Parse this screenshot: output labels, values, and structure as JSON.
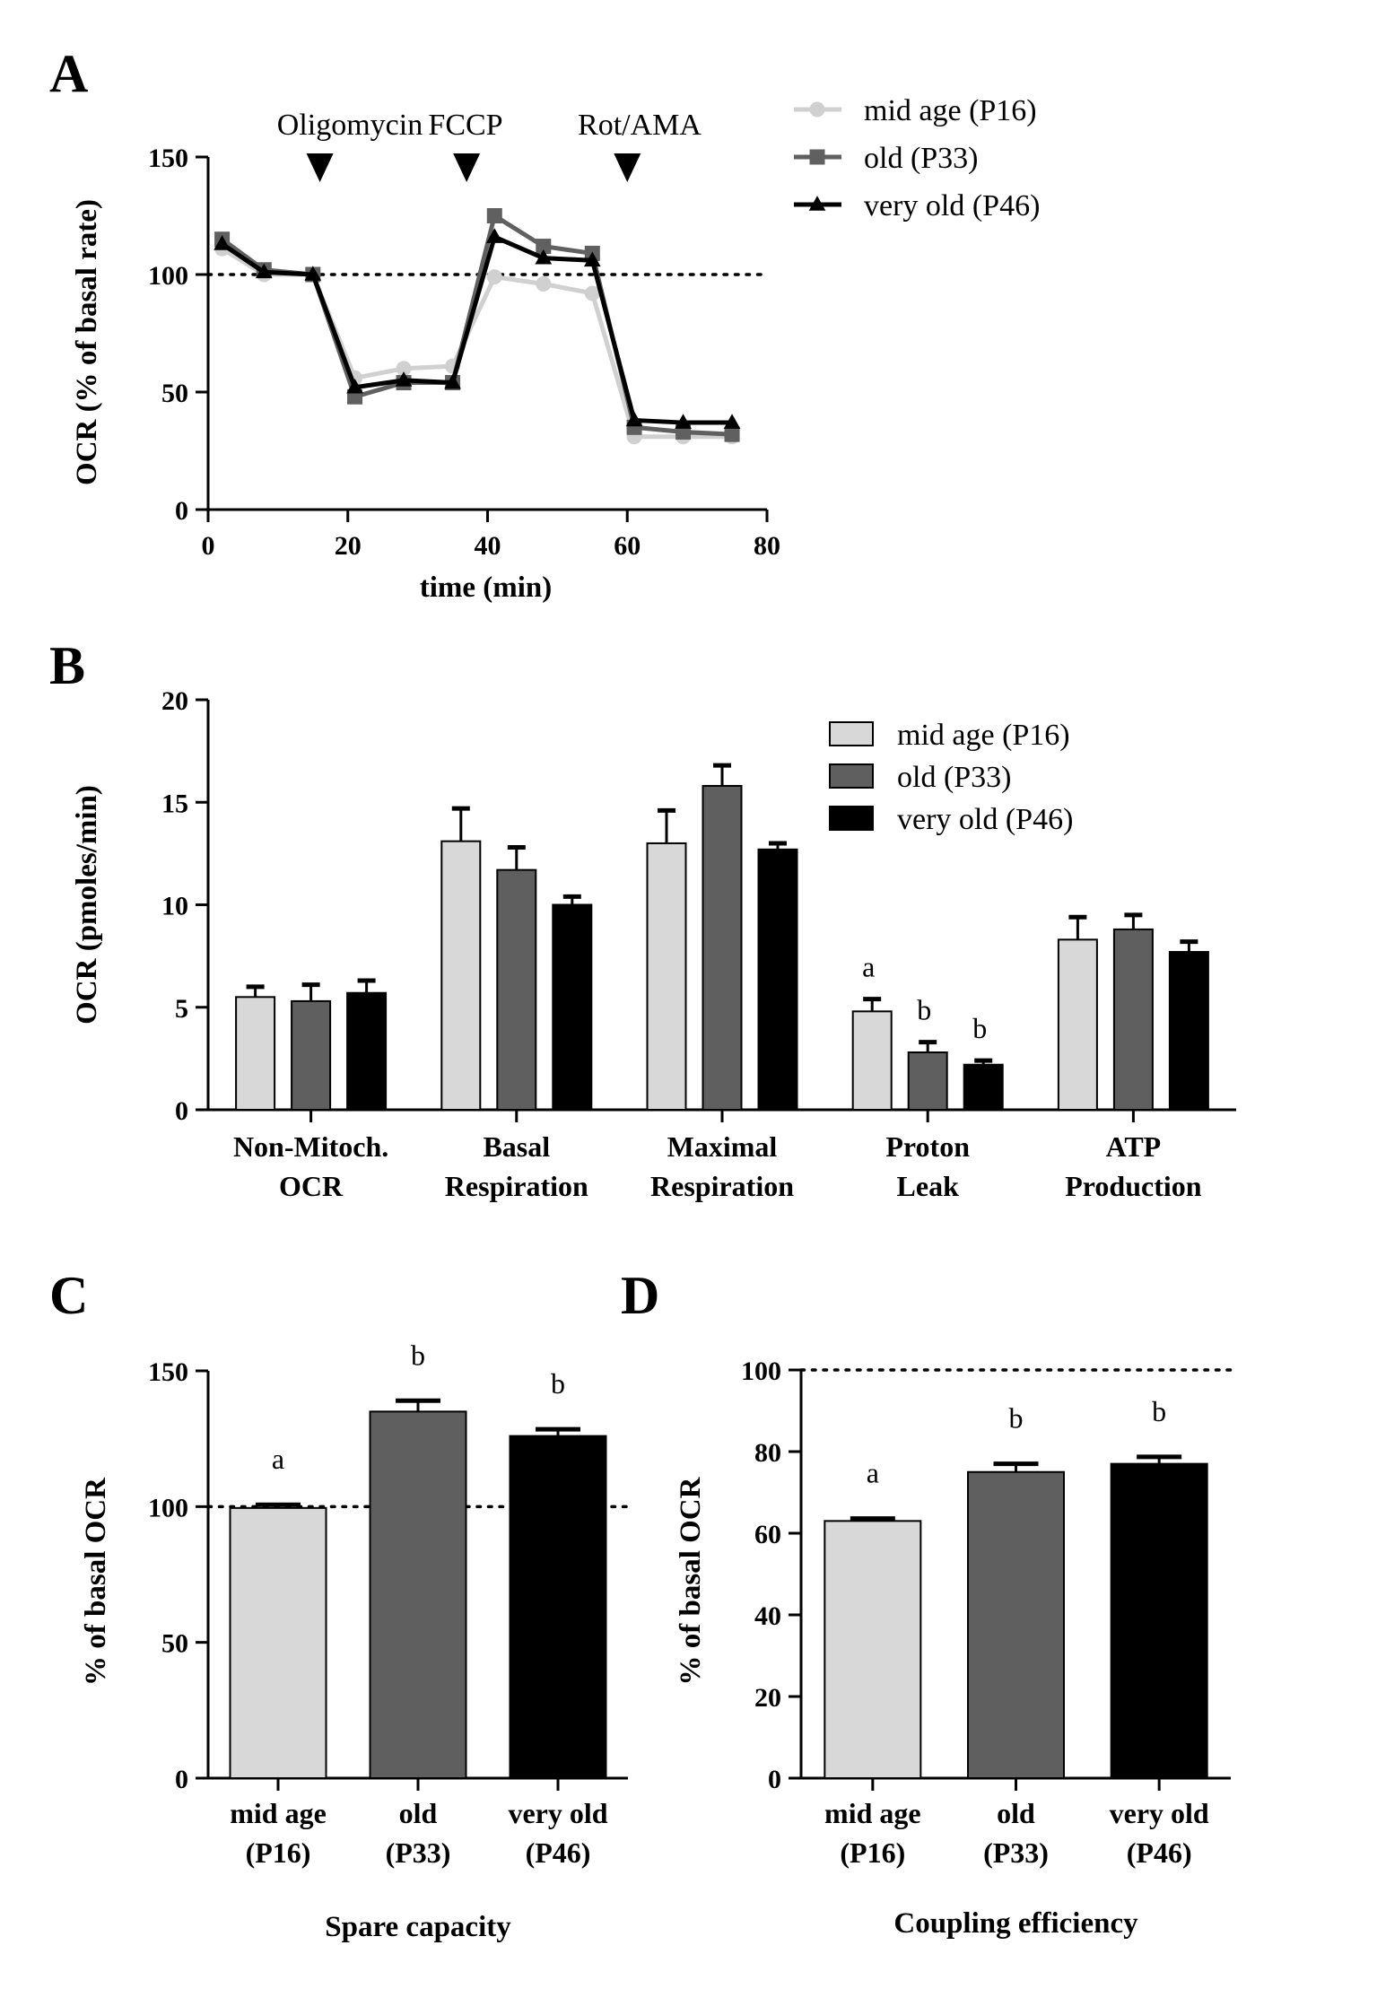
{
  "colors": {
    "mid": "#d8d8d8",
    "old": "#5f5f5f",
    "very_old": "#000000",
    "mid_line": "#d0d0d0",
    "old_line": "#606060",
    "very_old_line": "#000000"
  },
  "chart_data": [
    {
      "panel": "A",
      "type": "line",
      "xlabel": "time (min)",
      "ylabel": "OCR (% of basal rate)",
      "xlim": [
        0,
        80
      ],
      "ylim": [
        0,
        150
      ],
      "xticks": [
        0,
        20,
        40,
        60,
        80
      ],
      "yticks": [
        0,
        50,
        100,
        150
      ],
      "reference_line": 100,
      "annotations": [
        {
          "label": "Oligomycin",
          "x": 16
        },
        {
          "label": "FCCP",
          "x": 37
        },
        {
          "label": "Rot/AMA",
          "x": 60
        }
      ],
      "legend": "top-right",
      "series": [
        {
          "name": "mid age (P16)",
          "marker": "circle",
          "x": [
            2,
            8,
            15,
            21,
            28,
            35,
            41,
            48,
            55,
            61,
            68,
            75
          ],
          "y": [
            111,
            100,
            100,
            56,
            60,
            61,
            99,
            96,
            92,
            31,
            31,
            31
          ]
        },
        {
          "name": "old (P33)",
          "marker": "square",
          "x": [
            2,
            8,
            15,
            21,
            28,
            35,
            41,
            48,
            55,
            61,
            68,
            75
          ],
          "y": [
            115,
            102,
            100,
            48,
            54,
            54,
            125,
            112,
            109,
            35,
            33,
            32
          ]
        },
        {
          "name": "very old (P46)",
          "marker": "triangle",
          "x": [
            2,
            8,
            15,
            21,
            28,
            35,
            41,
            48,
            55,
            61,
            68,
            75
          ],
          "y": [
            113,
            101,
            100,
            52,
            55,
            54,
            116,
            107,
            106,
            38,
            37,
            37
          ]
        }
      ]
    },
    {
      "panel": "B",
      "type": "bar",
      "ylabel": "OCR (pmoles/min)",
      "ylim": [
        0,
        20
      ],
      "yticks": [
        0,
        5,
        10,
        15,
        20
      ],
      "legend": "top-right",
      "categories": [
        [
          "Non-Mitoch.",
          "OCR"
        ],
        [
          "Basal",
          "Respiration"
        ],
        [
          "Maximal",
          "Respiration"
        ],
        [
          "Proton",
          "Leak"
        ],
        [
          "ATP",
          "Production"
        ]
      ],
      "series": [
        {
          "name": "mid age (P16)",
          "values": [
            5.5,
            13.1,
            13.0,
            4.8,
            8.3
          ],
          "errors": [
            0.5,
            1.6,
            1.6,
            0.6,
            1.1
          ]
        },
        {
          "name": "old (P33)",
          "values": [
            5.3,
            11.7,
            15.8,
            2.8,
            8.8
          ],
          "errors": [
            0.8,
            1.1,
            1.0,
            0.5,
            0.7
          ]
        },
        {
          "name": "very old (P46)",
          "values": [
            5.7,
            10.0,
            12.7,
            2.2,
            7.7
          ],
          "errors": [
            0.6,
            0.4,
            0.3,
            0.2,
            0.5
          ]
        }
      ],
      "significance": [
        {
          "category": 3,
          "series": 0,
          "label": "a"
        },
        {
          "category": 3,
          "series": 1,
          "label": "b"
        },
        {
          "category": 3,
          "series": 2,
          "label": "b"
        }
      ]
    },
    {
      "panel": "C",
      "type": "bar",
      "xlabel": "Spare capacity",
      "ylabel": "% of basal OCR",
      "ylim": [
        0,
        150
      ],
      "yticks": [
        0,
        50,
        100,
        150
      ],
      "reference_line": 100,
      "categories": [
        [
          "mid age",
          "(P16)"
        ],
        [
          "old",
          "(P33)"
        ],
        [
          "very old",
          "(P46)"
        ]
      ],
      "values": [
        99.5,
        135,
        126
      ],
      "errors": [
        1.2,
        4,
        2.5
      ],
      "significance": [
        "a",
        "b",
        "b"
      ]
    },
    {
      "panel": "D",
      "type": "bar",
      "xlabel": "Coupling efficiency",
      "ylabel": "% of basal OCR",
      "ylim": [
        0,
        100
      ],
      "yticks": [
        0,
        20,
        40,
        60,
        80,
        100
      ],
      "reference_line": 100,
      "categories": [
        [
          "mid age",
          "(P16)"
        ],
        [
          "old",
          "(P33)"
        ],
        [
          "very old",
          "(P46)"
        ]
      ],
      "values": [
        63,
        75,
        77
      ],
      "errors": [
        0.6,
        2,
        1.7
      ],
      "significance": [
        "a",
        "b",
        "b"
      ]
    }
  ]
}
